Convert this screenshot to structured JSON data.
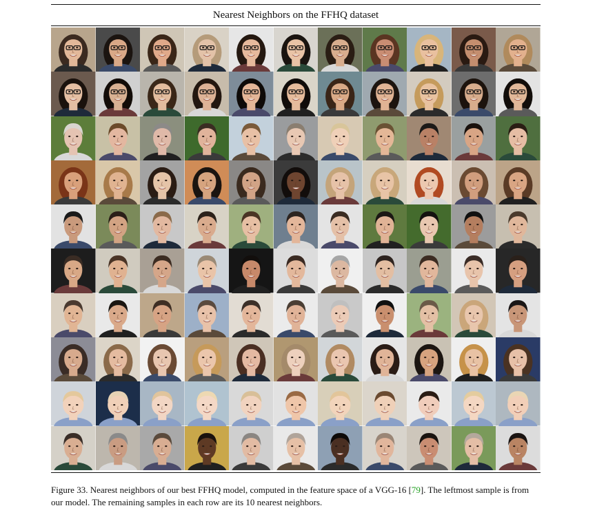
{
  "table": {
    "title": "Nearest Neighbors on the FFHQ dataset"
  },
  "grid": {
    "rows": 10,
    "cols": 11,
    "backgrounds": [
      [
        "#b8a58c",
        "#4a4a4a",
        "#cfc6b6",
        "#d9d2c6",
        "#e6e6e6",
        "#d8d5cf",
        "#6b7058",
        "#5f7a4a",
        "#a5b6c4",
        "#7a5a4a",
        "#b0a696"
      ],
      [
        "#6b5a4e",
        "#d0d0d0",
        "#b9b5ac",
        "#c7bcab",
        "#7e8c99",
        "#dad5c9",
        "#6f8a92",
        "#9fa9b0",
        "#d3cbbf",
        "#6d6d6d",
        "#e3e3e3"
      ],
      [
        "#5c7d3a",
        "#c8c1a6",
        "#8b8f7e",
        "#3e6a2c",
        "#c3d1dc",
        "#9a9c9e",
        "#d7c9b3",
        "#8f9b6f",
        "#a08873",
        "#9aa0a0",
        "#4f6f3f"
      ],
      [
        "#a36a3a",
        "#d9c7a9",
        "#a3a3a3",
        "#d08c57",
        "#8a8886",
        "#3b3b3b",
        "#b9c4c9",
        "#d6cfc0",
        "#e8ddd0",
        "#cbbfb2",
        "#bca488"
      ],
      [
        "#e2e2e2",
        "#7b8a5a",
        "#c8c8c8",
        "#d8d3c6",
        "#9fb07f",
        "#6f7f8f",
        "#e4e4e4",
        "#5f7a3f",
        "#446b2d",
        "#9c9c9c",
        "#c7bfb0"
      ],
      [
        "#1d1d1d",
        "#d0cbbf",
        "#a9a095",
        "#cfd5da",
        "#151515",
        "#dcdcdc",
        "#f0f0f0",
        "#c7c7c7",
        "#9b9e91",
        "#eaeaea",
        "#272727"
      ],
      [
        "#d9cfc0",
        "#e9e9e9",
        "#bda78a",
        "#9db0c8",
        "#e2dcd3",
        "#ebebeb",
        "#c9c9c9",
        "#f0f0f0",
        "#9bb37f",
        "#d2c6b6",
        "#e4e4e4"
      ],
      [
        "#8c8c96",
        "#dcd5c8",
        "#f2f2f2",
        "#b99f7e",
        "#cfc6b8",
        "#b09770",
        "#d2d6d9",
        "#e6e6e6",
        "#c9c2b4",
        "#efefef",
        "#2a3b66"
      ],
      [
        "#cfd4da",
        "#1c2e4a",
        "#a8b7c5",
        "#b0c3d0",
        "#d9d9d9",
        "#e2e2e2",
        "#d8cfb9",
        "#dbd5cb",
        "#eaeaea",
        "#bcc8d2",
        "#aeb8c0"
      ],
      [
        "#d5d1c8",
        "#bdb7ad",
        "#a9a9a9",
        "#c9a74a",
        "#cfcfcf",
        "#e9e9e9",
        "#8ea0b4",
        "#d8d4cc",
        "#cdc6bb",
        "#7a9a5a",
        "#dcdcdc"
      ]
    ],
    "skin": [
      [
        "#e2b899",
        "#d9a887",
        "#e0a98a",
        "#e3c2a8",
        "#e6b99c",
        "#e9c3a6",
        "#d8ad8e",
        "#c98d73",
        "#e9c09f",
        "#c48e6f",
        "#e2b08d"
      ],
      [
        "#e5bfa3",
        "#d8b092",
        "#e2bc9e",
        "#ddb296",
        "#e3b597",
        "#e5bb9c",
        "#d9a986",
        "#e0b394",
        "#e8c2a0",
        "#d7ac8c",
        "#e0b798"
      ],
      [
        "#e5c3b2",
        "#e3b7a0",
        "#dfb9a8",
        "#e0b39b",
        "#e8c0a5",
        "#e8c8b3",
        "#efd0b8",
        "#e4b797",
        "#b98166",
        "#d8a585",
        "#e5bda4"
      ],
      [
        "#d9a07b",
        "#e0b391",
        "#e5c4a8",
        "#d6a47f",
        "#d1a386",
        "#6e4530",
        "#e6c2a8",
        "#e8c4a6",
        "#ecc8b0",
        "#d19e7e",
        "#d9a583"
      ],
      [
        "#c99a7c",
        "#d2a383",
        "#e2b8a0",
        "#d9ab8d",
        "#e6bfa3",
        "#e3b69a",
        "#e4c0a7",
        "#e0b396",
        "#e8c7b0",
        "#b47e5f",
        "#e0b79b"
      ],
      [
        "#d8a886",
        "#e0b291",
        "#d5a689",
        "#e9c4a8",
        "#c7896a",
        "#e3b89c",
        "#dcb8a1",
        "#e3bea2",
        "#e1b79c",
        "#e8c4ab",
        "#d59f80"
      ],
      [
        "#e1b594",
        "#d9a98a",
        "#d6a384",
        "#e8c2a9",
        "#e3b69a",
        "#e0b398",
        "#ebcbb7",
        "#c98f6e",
        "#e3c0a5",
        "#e8c6ad",
        "#c89678"
      ],
      [
        "#d7aa8d",
        "#e4bba0",
        "#e8c6b0",
        "#ebc6ac",
        "#e4b9a2",
        "#edd0bd",
        "#eac6b0",
        "#e0b498",
        "#d6a37f",
        "#e8c2a4",
        "#e7c0a8"
      ],
      [
        "#f2d2bb",
        "#f0d0b8",
        "#f2d6c4",
        "#f4d8c6",
        "#f1d3bf",
        "#efc6a9",
        "#f2d4bb",
        "#efd0b8",
        "#f0cdbb",
        "#f4d7c2",
        "#f2cfb8"
      ],
      [
        "#d9ae92",
        "#c99c82",
        "#d8ad92",
        "#5e3a24",
        "#e2bba3",
        "#e6c0a6",
        "#4a2f22",
        "#e1b69c",
        "#c98d72",
        "#e4bea6",
        "#b98463"
      ]
    ],
    "hair": [
      [
        "#3b2a20",
        "#1b1410",
        "#3a2618",
        "#b59b7a",
        "#241810",
        "#1a1410",
        "#2a1d14",
        "#5a3522",
        "#d8b57a",
        "#2a1a12",
        "#b08a5c"
      ],
      [
        "#1a120d",
        "#120c08",
        "#3a2718",
        "#231710",
        "#0e0a08",
        "#100c0a",
        "#3a2517",
        "#1c140f",
        "#c59b5c",
        "#1c130d",
        "#120d0a"
      ],
      [
        "#d8d4cf",
        "#6b4a2a",
        "#8c8a88",
        "#3a2c22",
        "#7a5a3a",
        "#8a7e70",
        "#d8c59a",
        "#6a5234",
        "#1c1a18",
        "#1a120e",
        "#2a1d14"
      ],
      [
        "#7a3418",
        "#a87a4a",
        "#2a1c14",
        "#1a1410",
        "#3a2a1e",
        "#120d0b",
        "#c4a47a",
        "#c8a77a",
        "#b14a22",
        "#6a4a32",
        "#5a3b26"
      ],
      [
        "#1a1a1a",
        "#2a1f18",
        "#8a6a4a",
        "#2b211a",
        "#4a3424",
        "#2c2420",
        "#3a2c22",
        "#1c1814",
        "#141210",
        "#101010",
        "#4a3a2c"
      ],
      [
        "#3a2c24",
        "#4a3426",
        "#3c2c22",
        "#9a8a76",
        "#120e0c",
        "#3a2a22",
        "#a6a6a6",
        "#2e2420",
        "#3c2c22",
        "#3a2c26",
        "#2a201a"
      ],
      [
        "#4a3a30",
        "#1a1612",
        "#3e2e24",
        "#5a4a3e",
        "#3c3028",
        "#4a3e34",
        "#bfbfbf",
        "#101010",
        "#6a5a48",
        "#caa67a",
        "#1a1616"
      ],
      [
        "#3a2c26",
        "#8a6a4a",
        "#6a4a34",
        "#c69a5a",
        "#4a2e22",
        "#a48a6a",
        "#b08a62",
        "#2a1c16",
        "#1c1612",
        "#c6924a",
        "#4a3222"
      ],
      [
        "#e4c89c",
        "#e6d2b4",
        "#e0c49c",
        "#eed9b2",
        "#d8bf98",
        "#9a6a44",
        "#e2c59a",
        "#6a4a30",
        "#2a1c14",
        "#e4cc9e",
        "#ead6b4"
      ],
      [
        "#3a2e28",
        "#8a8a8a",
        "#5a4a3c",
        "#1a120e",
        "#8a8682",
        "#b0a49a",
        "#0e0a08",
        "#9a8676",
        "#1a1410",
        "#b4a89c",
        "#1a1412"
      ]
    ],
    "glasses_rows": [
      0,
      1
    ]
  },
  "caption": {
    "label": "Figure 33.",
    "text_before_cite": "  Nearest neighbors of our best FFHQ model, computed in the feature space of a VGG-16 [",
    "cite": "79",
    "text_after_cite": "]. The leftmost sample is from our model. The remaining samples in each row are its 10 nearest neighbors."
  }
}
